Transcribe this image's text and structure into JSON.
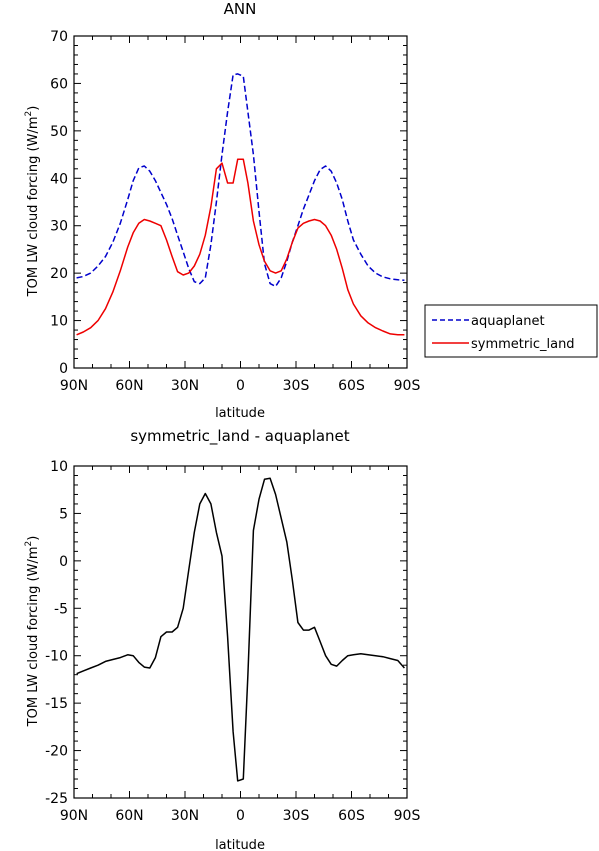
{
  "chart_data": [
    {
      "type": "line",
      "title": "ANN",
      "xlabel": "latitude",
      "ylabel": "TOM LW cloud forcing (W/m",
      "ylabel_sup": "2",
      "ylabel_end": ")",
      "xlim": [
        -90,
        90
      ],
      "ylim": [
        0,
        70
      ],
      "x_ticks": [
        -90,
        -60,
        -30,
        0,
        30,
        60,
        90
      ],
      "x_tick_labels": [
        "90N",
        "60N",
        "30N",
        "0",
        "30S",
        "60S",
        "90S"
      ],
      "y_ticks": [
        0,
        10,
        20,
        30,
        40,
        50,
        60,
        70
      ],
      "y_tick_labels": [
        "0",
        "10",
        "20",
        "30",
        "40",
        "50",
        "60",
        "70"
      ],
      "legend": {
        "placement": "right",
        "entries": [
          "aquaplanet",
          "symmetric_land"
        ]
      },
      "series": [
        {
          "name": "aquaplanet",
          "color": "#0000cc",
          "dash": "dashed",
          "x": [
            -88.6,
            -85,
            -81,
            -77,
            -73,
            -69,
            -65,
            -61,
            -58,
            -55,
            -52,
            -49,
            -46,
            -43,
            -40,
            -37,
            -34,
            -31,
            -28,
            -25,
            -22,
            -19,
            -16,
            -13,
            -10,
            -7,
            -4,
            -1.5,
            1.5,
            4,
            7,
            10,
            13,
            16,
            19,
            22,
            25,
            28,
            31,
            34,
            37,
            40,
            43,
            46,
            49,
            52,
            55,
            58,
            61,
            65,
            69,
            73,
            77,
            81,
            85,
            88.6
          ],
          "y": [
            19,
            19.3,
            20,
            21.5,
            23.5,
            26.5,
            30.5,
            35.5,
            39.5,
            42.2,
            42.6,
            41.5,
            39.5,
            37,
            34.5,
            31.5,
            28,
            24.5,
            21,
            18.2,
            17.8,
            19,
            26,
            35,
            45,
            54,
            61.8,
            62,
            61.5,
            54,
            45,
            33,
            22,
            17.8,
            17.2,
            19,
            22.5,
            26.5,
            30,
            33.5,
            36.5,
            39.5,
            41.8,
            42.6,
            41.5,
            39,
            35.5,
            31,
            27,
            24,
            21.5,
            20,
            19.2,
            18.8,
            18.6,
            18.5
          ]
        },
        {
          "name": "symmetric_land",
          "color": "#ee0000",
          "dash": "solid",
          "x": [
            -88.6,
            -85,
            -81,
            -77,
            -73,
            -69,
            -65,
            -61,
            -58,
            -55,
            -52,
            -49,
            -46,
            -43,
            -40,
            -37,
            -34,
            -31,
            -28,
            -25,
            -22,
            -19,
            -16,
            -13,
            -10,
            -7,
            -4,
            -1.5,
            1.5,
            4,
            7,
            10,
            13,
            16,
            19,
            22,
            25,
            28,
            31,
            34,
            37,
            40,
            43,
            46,
            49,
            52,
            55,
            58,
            61,
            65,
            69,
            73,
            77,
            81,
            85,
            88.6
          ],
          "y": [
            7,
            7.6,
            8.5,
            10,
            12.5,
            16,
            20.5,
            25.5,
            28.5,
            30.5,
            31.3,
            31,
            30.5,
            30,
            27,
            23.5,
            20.3,
            19.6,
            20,
            21.5,
            24,
            28,
            34,
            42,
            43.2,
            39,
            39,
            44,
            44,
            39,
            31,
            26,
            22.5,
            20.5,
            20,
            20.5,
            23,
            26.5,
            29.5,
            30.5,
            31,
            31.3,
            31,
            30,
            28,
            25,
            21,
            16.5,
            13.5,
            11,
            9.5,
            8.5,
            7.8,
            7.2,
            7,
            7
          ]
        }
      ]
    },
    {
      "type": "line",
      "title": "symmetric_land - aquaplanet",
      "xlabel": "latitude",
      "ylabel": "TOM LW cloud forcing (W/m",
      "ylabel_sup": "2",
      "ylabel_end": ")",
      "xlim": [
        -90,
        90
      ],
      "ylim": [
        -25,
        10
      ],
      "x_ticks": [
        -90,
        -60,
        -30,
        0,
        30,
        60,
        90
      ],
      "x_tick_labels": [
        "90N",
        "60N",
        "30N",
        "0",
        "30S",
        "60S",
        "90S"
      ],
      "y_ticks": [
        -25,
        -20,
        -15,
        -10,
        -5,
        0,
        5,
        10
      ],
      "y_tick_labels": [
        "-25",
        "-20",
        "-15",
        "-10",
        "-5",
        "0",
        "5",
        "10"
      ],
      "series": [
        {
          "color": "#000000",
          "dash": "solid",
          "x": [
            -88.6,
            -85,
            -81,
            -77,
            -73,
            -69,
            -65,
            -61,
            -58,
            -55,
            -52,
            -49,
            -46,
            -43,
            -40,
            -37,
            -34,
            -31,
            -28,
            -25,
            -22,
            -19,
            -16,
            -13,
            -10,
            -7,
            -4,
            -1.5,
            1.5,
            4,
            7,
            10,
            13,
            16,
            19,
            22,
            25,
            28,
            31,
            34,
            37,
            40,
            43,
            46,
            49,
            52,
            55,
            58,
            61,
            65,
            69,
            73,
            77,
            81,
            85,
            88.6
          ],
          "y": [
            -11.9,
            -11.6,
            -11.3,
            -11,
            -10.6,
            -10.4,
            -10.2,
            -9.9,
            -10,
            -10.7,
            -11.2,
            -11.3,
            -10.2,
            -8,
            -7.5,
            -7.5,
            -7,
            -5,
            -1,
            3,
            6,
            7.1,
            6,
            3,
            0.5,
            -8,
            -18,
            -23.2,
            -23,
            -12,
            3.2,
            6.5,
            8.6,
            8.7,
            7,
            4.5,
            2,
            -2,
            -6.5,
            -7.3,
            -7.3,
            -7,
            -8.5,
            -10,
            -10.9,
            -11.1,
            -10.5,
            -10,
            -9.9,
            -9.8,
            -9.9,
            -10,
            -10.1,
            -10.3,
            -10.5,
            -11.3
          ]
        }
      ]
    }
  ]
}
